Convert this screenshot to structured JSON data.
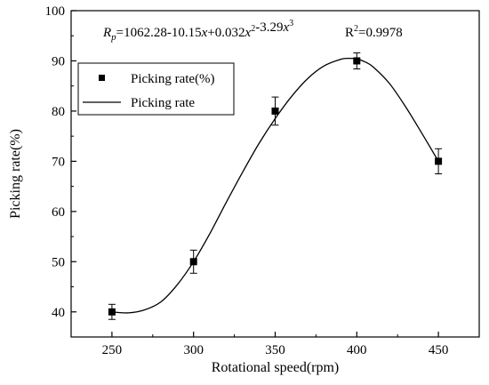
{
  "chart_data": {
    "type": "scatter",
    "xlabel": "Rotational speed(rpm)",
    "ylabel": "Picking rate(%)",
    "xlim": [
      225,
      475
    ],
    "ylim": [
      35,
      100
    ],
    "xticks": [
      250,
      300,
      350,
      400,
      450
    ],
    "yticks": [
      40,
      50,
      60,
      70,
      80,
      90,
      100
    ],
    "grid": false,
    "legend_position": "top-left",
    "annotation": {
      "formula_lhs_main": "R",
      "formula_lhs_sub": "p",
      "formula_rhs_text": "=1062.28-10.15x+0.032x2-3.29x3",
      "r2_text": "R2=0.9978"
    },
    "series": [
      {
        "name": "Picking rate(%)",
        "kind": "points",
        "marker": "square",
        "color": "#000000",
        "x": [
          250,
          300,
          350,
          400,
          450
        ],
        "y": [
          40,
          50,
          80,
          90,
          70
        ],
        "err": [
          1.5,
          2.3,
          2.8,
          1.6,
          2.5
        ]
      },
      {
        "name": "Picking rate",
        "kind": "line",
        "color": "#000000",
        "x": [
          250,
          260,
          270,
          280,
          290,
          300,
          310,
          320,
          330,
          340,
          350,
          360,
          370,
          380,
          390,
          395,
          400,
          405,
          410,
          420,
          430,
          440,
          450
        ],
        "y": [
          40.0,
          39.8,
          40.4,
          42.0,
          45.4,
          50.0,
          55.6,
          61.8,
          67.8,
          73.5,
          78.5,
          82.9,
          86.5,
          89.0,
          90.3,
          90.5,
          90.4,
          89.8,
          88.8,
          85.5,
          80.8,
          75.5,
          70.0
        ]
      }
    ]
  }
}
